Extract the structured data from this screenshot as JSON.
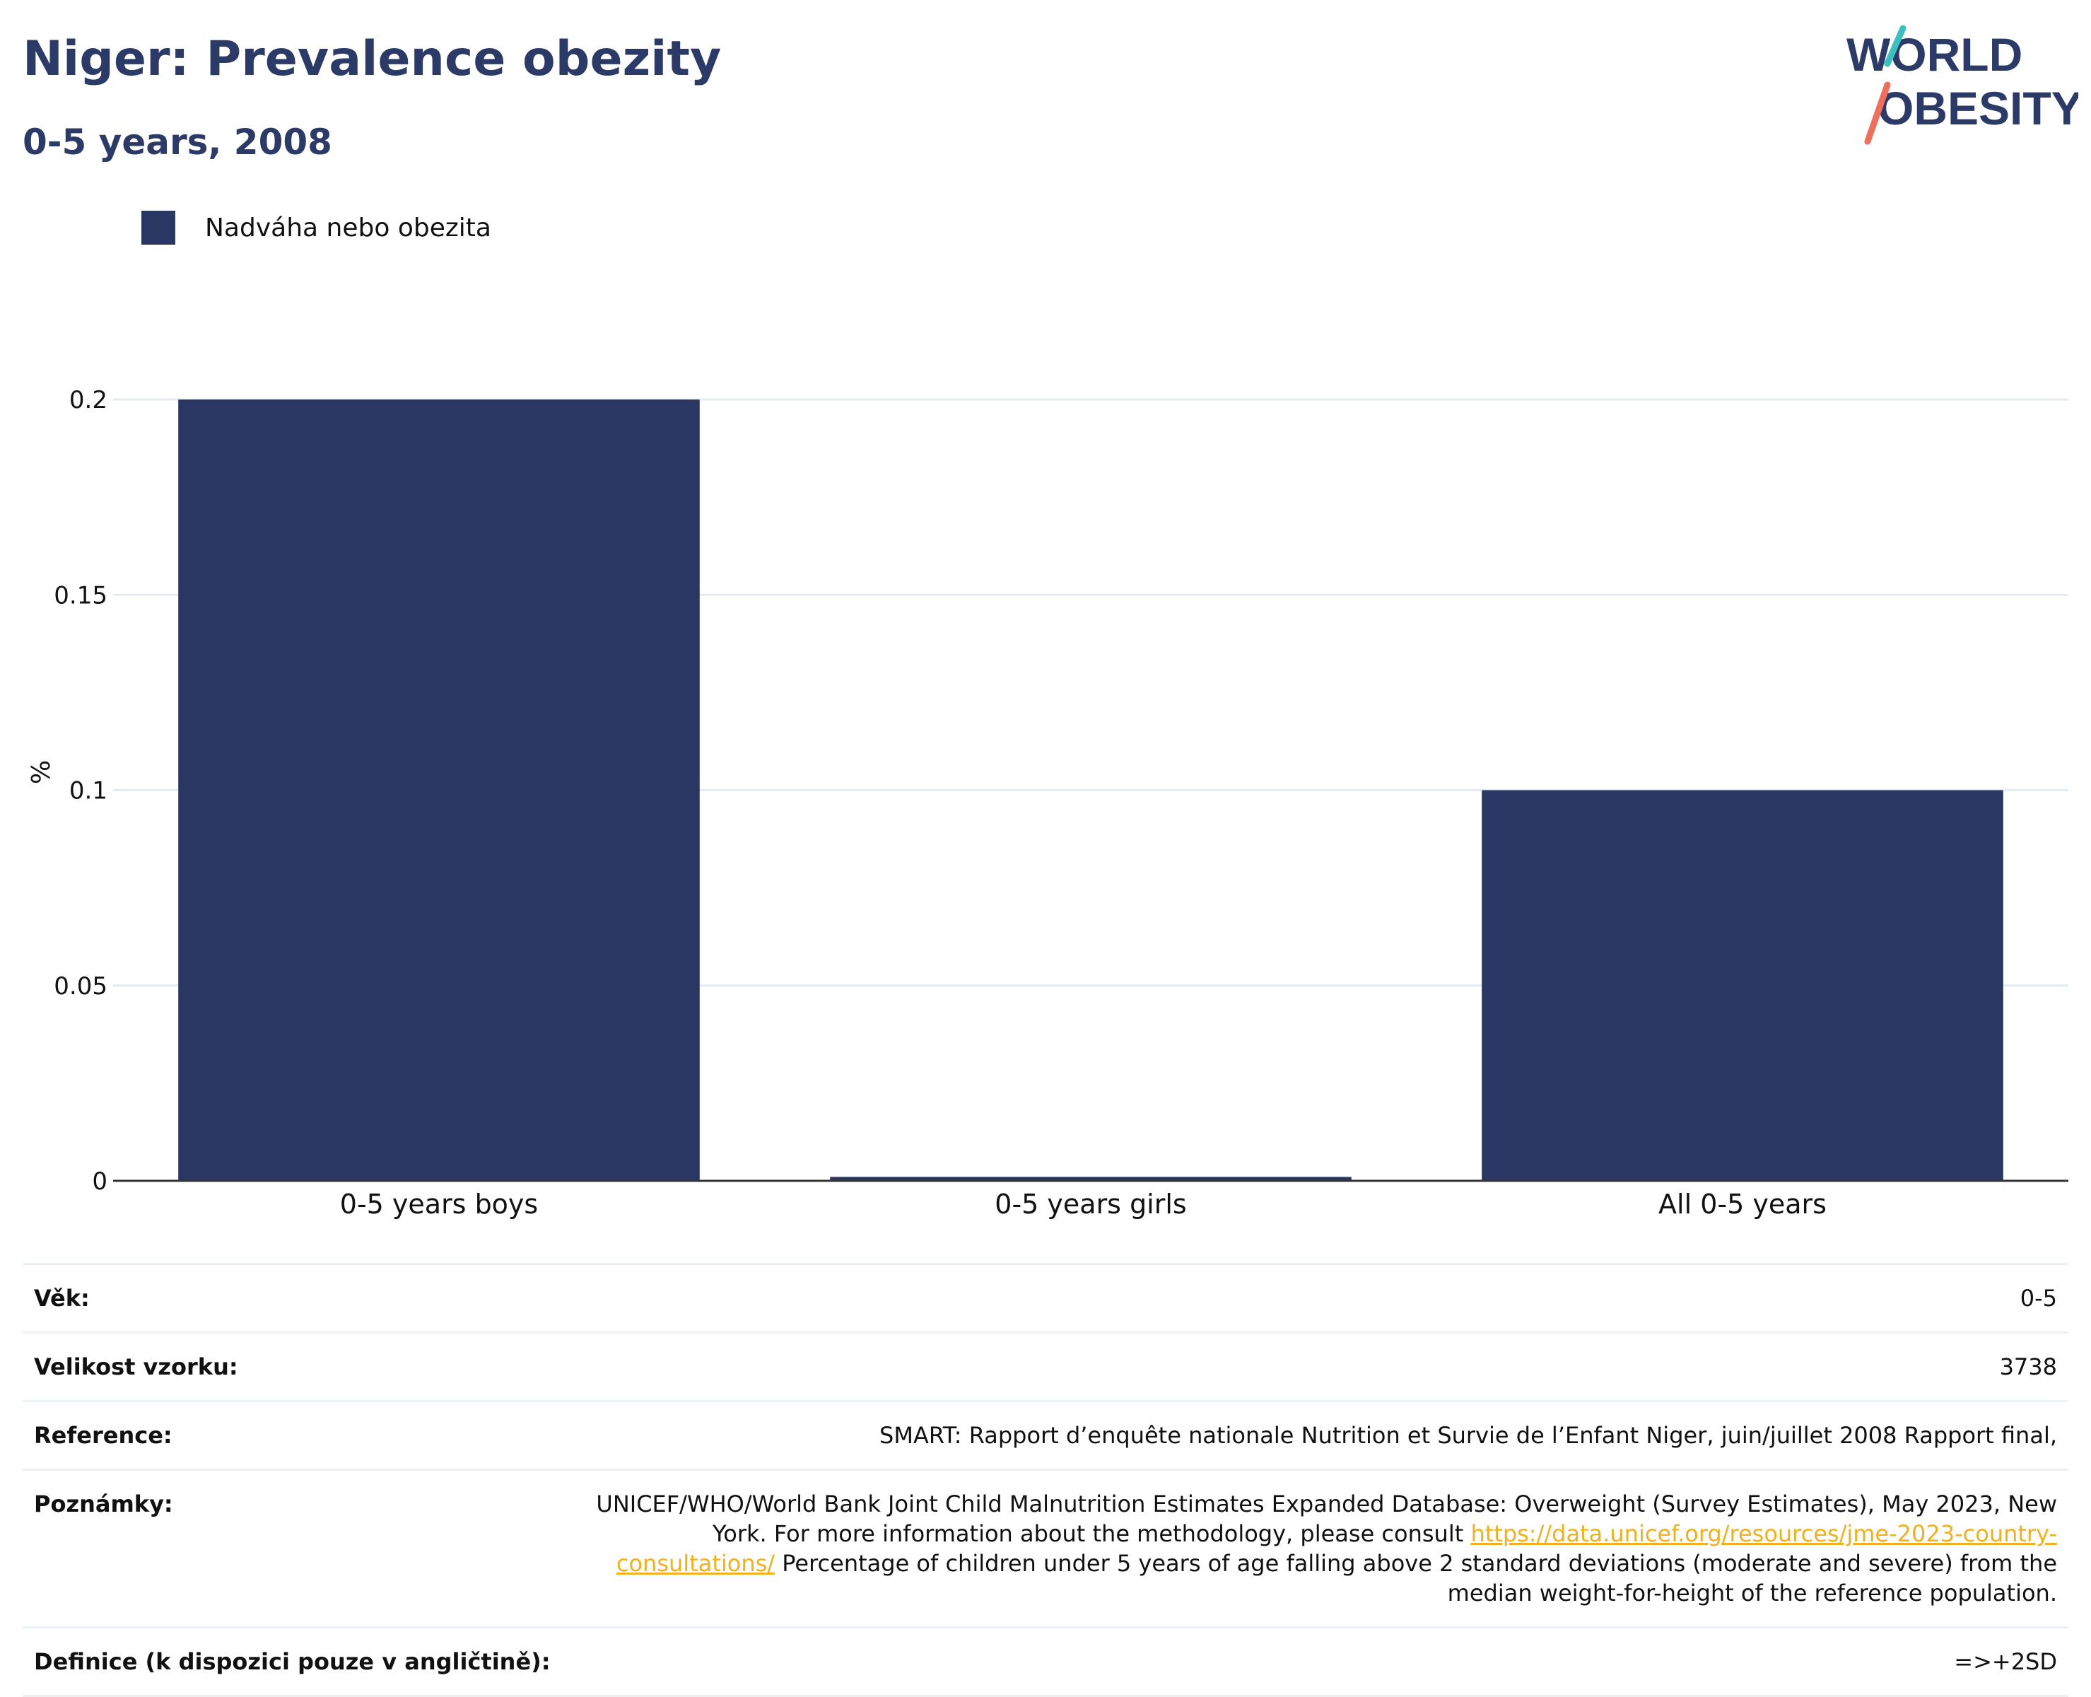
{
  "header": {
    "title": "Niger: Prevalence obezity",
    "subtitle": "0-5 years, 2008"
  },
  "logo": {
    "line1": "WORLD",
    "line2": "OBESITY"
  },
  "colors": {
    "bar": "#2b3763",
    "title": "#2b3a67",
    "grid": "#e6eaf1",
    "link": "#f2b01e",
    "logo_teal": "#3bbfbf",
    "logo_coral": "#ef6f5e"
  },
  "chart_data": {
    "type": "bar",
    "categories": [
      "0-5 years boys",
      "0-5 years girls",
      "All 0-5 years"
    ],
    "series": [
      {
        "name": "Nadváha nebo obezita",
        "values": [
          0.2,
          0.001,
          0.1
        ]
      }
    ],
    "ylabel": "%",
    "ylim": [
      0,
      0.2
    ],
    "yticks": [
      0,
      0.05,
      0.1,
      0.15,
      0.2
    ],
    "ytick_labels": [
      "0",
      "0.05",
      "0.1",
      "0.15",
      "0.2"
    ],
    "grid": true,
    "legend_position": "top-left"
  },
  "info": {
    "age_label": "Věk:",
    "age_value": "0-5",
    "sample_label": "Velikost vzorku:",
    "sample_value": "3738",
    "reference_label": "Reference:",
    "reference_value": "SMART: Rapport d’enquête nationale Nutrition et Survie de l’Enfant Niger, juin/juillet 2008 Rapport final,",
    "notes_label": "Poznámky:",
    "notes_text1": "UNICEF/WHO/World Bank Joint Child Malnutrition Estimates Expanded Database: Overweight (Survey Estimates), May 2023, New York. For more information about the methodology, please consult ",
    "notes_link": "https://data.unicef.org/resources/jme-2023-country-consultations/",
    "notes_text2": " Percentage of children under 5 years of age falling above 2 standard deviations (moderate and severe) from the median weight-for-height of the reference population.",
    "definition_label": "Definice (k dispozici pouze v angličtině):",
    "definition_value": "=>+2SD"
  }
}
